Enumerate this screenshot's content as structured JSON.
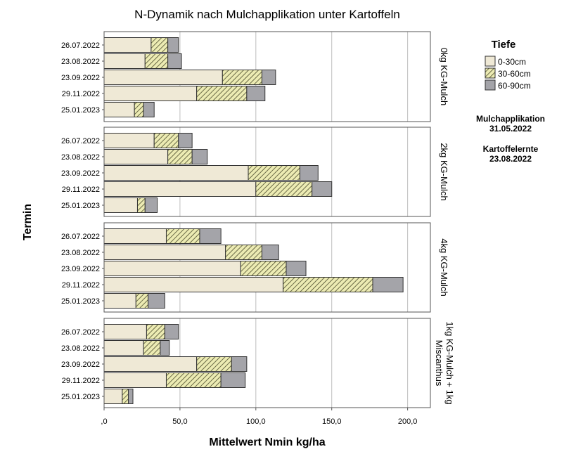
{
  "chart_data": {
    "type": "bar",
    "orientation": "horizontal",
    "stacked": true,
    "title": "N-Dynamik nach Mulchapplikation unter Kartoffeln",
    "xlabel": "Mittelwert Nmin kg/ha",
    "ylabel": "Termin",
    "xlim": [
      0,
      215
    ],
    "xticks": [
      ",0",
      "50,0",
      "100,0",
      "150,0",
      "200,0"
    ],
    "grid": "vertical",
    "categories": [
      "26.07.2022",
      "23.08.2022",
      "23.09.2022",
      "29.11.2022",
      "25.01.2023"
    ],
    "legend": {
      "title": "Tiefe",
      "position": "right",
      "items": [
        "0-30cm",
        "30-60cm",
        "60-90cm"
      ]
    },
    "colors": {
      "0-30cm": "#efe9d6",
      "30-60cm": "#ecebb3",
      "hatch": "#4a4a2c",
      "60-90cm": "#a4a4a9",
      "grid": "#bdbdbd",
      "frame": "#555555"
    },
    "panels": [
      {
        "label": [
          "0kg KG-Mulch"
        ],
        "series": [
          {
            "name": "0-30cm",
            "values": [
              31,
              27,
              78,
              61,
              20
            ]
          },
          {
            "name": "30-60cm",
            "values": [
              11,
              15,
              26,
              33,
              6
            ]
          },
          {
            "name": "60-90cm",
            "values": [
              7,
              9,
              9,
              12,
              7
            ]
          }
        ]
      },
      {
        "label": [
          "2kg KG-Mulch"
        ],
        "series": [
          {
            "name": "0-30cm",
            "values": [
              33,
              42,
              95,
              100,
              22
            ]
          },
          {
            "name": "30-60cm",
            "values": [
              16,
              16,
              34,
              37,
              5
            ]
          },
          {
            "name": "60-90cm",
            "values": [
              9,
              10,
              12,
              13,
              8
            ]
          }
        ]
      },
      {
        "label": [
          "4kg KG-Mulch"
        ],
        "series": [
          {
            "name": "0-30cm",
            "values": [
              41,
              80,
              90,
              118,
              21
            ]
          },
          {
            "name": "30-60cm",
            "values": [
              22,
              24,
              30,
              59,
              8
            ]
          },
          {
            "name": "60-90cm",
            "values": [
              14,
              11,
              13,
              20,
              11
            ]
          }
        ]
      },
      {
        "label": [
          "1kg KG-Mulch + 1kg",
          "Miscanthus"
        ],
        "series": [
          {
            "name": "0-30cm",
            "values": [
              28,
              26,
              61,
              41,
              12
            ]
          },
          {
            "name": "30-60cm",
            "values": [
              12,
              11,
              23,
              36,
              4
            ]
          },
          {
            "name": "60-90cm",
            "values": [
              9,
              6,
              10,
              16,
              3
            ]
          }
        ]
      }
    ],
    "annotations": [
      [
        "Mulchapplikation",
        "31.05.2022"
      ],
      [
        "Kartoffelernte",
        "23.08.2022"
      ]
    ]
  }
}
